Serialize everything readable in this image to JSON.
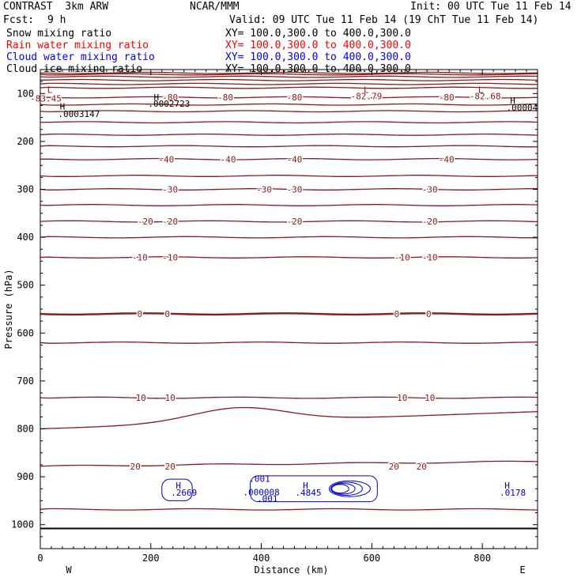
{
  "header": {
    "title": "CONTRAST  3km ARW",
    "center": "NCAR/MMM",
    "init": "Init: 00 UTC Tue 11 Feb 14",
    "fcst_label": "Fcst:",
    "fcst_value": "9 h",
    "valid": "Valid: 09 UTC Tue 11 Feb 14 (19 ChT Tue 11 Feb 14)"
  },
  "fields": [
    {
      "name": "Snow mixing ratio",
      "xy": "XY= 100.0,300.0 to 400.0,300.0",
      "color": "#000000"
    },
    {
      "name": "Rain water mixing ratio",
      "xy": "XY= 100.0,300.0 to 400.0,300.0",
      "color": "#ff0000"
    },
    {
      "name": "Cloud water mixing ratio",
      "xy": "XY= 100.0,300.0 to 400.0,300.0",
      "color": "#0000ff"
    },
    {
      "name": "Cloud ice mixing ratio",
      "xy": "XY= 100.0,300.0 to 400.0,300.0",
      "color": "#000000"
    }
  ],
  "chart_data": {
    "type": "contour",
    "xlabel": "Distance (km)",
    "ylabel": "Pressure (hPa)",
    "xlim": [
      0,
      900
    ],
    "ylim": [
      1050,
      50
    ],
    "xticks": [
      0,
      200,
      400,
      600,
      800
    ],
    "yticks": [
      100,
      200,
      300,
      400,
      500,
      600,
      700,
      800,
      900,
      1000
    ],
    "x_left_label": "W",
    "x_right_label": "E",
    "colors": {
      "temp": "#8b1a1a",
      "cloud": "#0000cc",
      "axis": "#000000"
    },
    "isotherm_levels": [
      {
        "p": 57,
        "label": null
      },
      {
        "p": 60,
        "label": null
      },
      {
        "p": 65,
        "label": null
      },
      {
        "p": 72,
        "label": null
      },
      {
        "p": 80,
        "label": null
      },
      {
        "p": 88,
        "label": null
      },
      {
        "p": 108,
        "label": null
      },
      {
        "p": 123,
        "label": null
      },
      {
        "p": 137,
        "label": null
      },
      {
        "p": 160,
        "label": null
      },
      {
        "p": 186,
        "label": null
      },
      {
        "p": 210,
        "label": null
      },
      {
        "p": 237,
        "label": null
      },
      {
        "p": 272,
        "label": null
      },
      {
        "p": 300,
        "label": null
      },
      {
        "p": 333,
        "label": null
      },
      {
        "p": 367,
        "label": null
      },
      {
        "p": 400,
        "label": null
      },
      {
        "p": 442,
        "label": null
      },
      {
        "p": 560,
        "label": null,
        "bold": true
      },
      {
        "p": 620,
        "label": null
      },
      {
        "p": 735,
        "label": null
      },
      {
        "p": 878,
        "label": null
      },
      {
        "p": 968,
        "label": null
      }
    ],
    "contour_labels": [
      {
        "x": 10,
        "p": 110,
        "text": "-83.45"
      },
      {
        "x": 235,
        "p": 108,
        "text": "-80"
      },
      {
        "x": 335,
        "p": 108,
        "text": "-80"
      },
      {
        "x": 460,
        "p": 108,
        "text": "-80"
      },
      {
        "x": 590,
        "p": 105,
        "text": "-82.79"
      },
      {
        "x": 735,
        "p": 108,
        "text": "-80"
      },
      {
        "x": 805,
        "p": 105,
        "text": "-82.68"
      },
      {
        "x": 228,
        "p": 237,
        "text": "-40"
      },
      {
        "x": 340,
        "p": 237,
        "text": "-40"
      },
      {
        "x": 460,
        "p": 237,
        "text": "-40"
      },
      {
        "x": 735,
        "p": 237,
        "text": "-40"
      },
      {
        "x": 235,
        "p": 300,
        "text": "-30"
      },
      {
        "x": 405,
        "p": 300,
        "text": "-30"
      },
      {
        "x": 460,
        "p": 300,
        "text": "-30"
      },
      {
        "x": 705,
        "p": 300,
        "text": "-30"
      },
      {
        "x": 190,
        "p": 367,
        "text": "-20"
      },
      {
        "x": 235,
        "p": 367,
        "text": "-20"
      },
      {
        "x": 460,
        "p": 367,
        "text": "-20"
      },
      {
        "x": 705,
        "p": 367,
        "text": "-20"
      },
      {
        "x": 180,
        "p": 442,
        "text": "-10"
      },
      {
        "x": 235,
        "p": 442,
        "text": "-10"
      },
      {
        "x": 655,
        "p": 442,
        "text": "-10"
      },
      {
        "x": 705,
        "p": 442,
        "text": "-10"
      },
      {
        "x": 180,
        "p": 560,
        "text": "0"
      },
      {
        "x": 230,
        "p": 560,
        "text": "0"
      },
      {
        "x": 645,
        "p": 560,
        "text": "0"
      },
      {
        "x": 703,
        "p": 560,
        "text": "0"
      },
      {
        "x": 182,
        "p": 735,
        "text": "10"
      },
      {
        "x": 235,
        "p": 735,
        "text": "10"
      },
      {
        "x": 655,
        "p": 735,
        "text": "10"
      },
      {
        "x": 705,
        "p": 735,
        "text": "10"
      },
      {
        "x": 172,
        "p": 878,
        "text": "20"
      },
      {
        "x": 235,
        "p": 878,
        "text": "20"
      },
      {
        "x": 640,
        "p": 878,
        "text": "20"
      },
      {
        "x": 690,
        "p": 878,
        "text": "20"
      }
    ],
    "extrema": [
      {
        "x": 17,
        "p": 92,
        "text": "L",
        "color": "#8b1a1a"
      },
      {
        "x": 590,
        "p": 92,
        "text": "L",
        "color": "#8b1a1a"
      },
      {
        "x": 797,
        "p": 92,
        "text": "L",
        "color": "#8b1a1a"
      },
      {
        "x": 210,
        "p": 108,
        "text": "H",
        "color": "#000000"
      },
      {
        "x": 233,
        "p": 121,
        "text": ".0002723",
        "color": "#000000"
      },
      {
        "x": 40,
        "p": 127,
        "text": "H",
        "color": "#000000"
      },
      {
        "x": 70,
        "p": 142,
        "text": ".0003147",
        "color": "#000000"
      },
      {
        "x": 855,
        "p": 114,
        "text": "H",
        "color": "#000000"
      },
      {
        "x": 872,
        "p": 129,
        "text": ".00004",
        "color": "#000000"
      },
      {
        "x": 250,
        "p": 918,
        "text": "H",
        "color": "#0000cc"
      },
      {
        "x": 260,
        "p": 933,
        "text": ".2669",
        "color": "#0000cc"
      },
      {
        "x": 397,
        "p": 904,
        "text": ".001",
        "color": "#0000cc"
      },
      {
        "x": 400,
        "p": 932,
        "text": ".000008",
        "color": "#0000cc"
      },
      {
        "x": 411,
        "p": 945,
        "text": ".001",
        "color": "#0000cc"
      },
      {
        "x": 480,
        "p": 918,
        "text": "H",
        "color": "#0000cc"
      },
      {
        "x": 485,
        "p": 933,
        "text": ".4845",
        "color": "#0000cc"
      },
      {
        "x": 845,
        "p": 918,
        "text": "H",
        "color": "#0000cc"
      },
      {
        "x": 855,
        "p": 933,
        "text": ".0178",
        "color": "#0000cc"
      }
    ],
    "cloud_regions": [
      {
        "x0": 220,
        "x1": 275,
        "p0": 905,
        "p1": 950
      },
      {
        "x0": 380,
        "x1": 610,
        "p0": 898,
        "p1": 952
      }
    ]
  }
}
